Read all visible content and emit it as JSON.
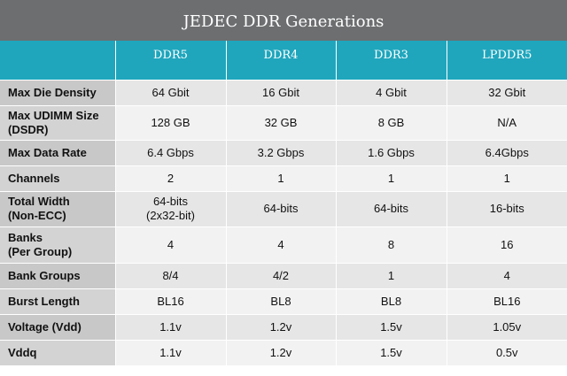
{
  "title": "JEDEC DDR Generations",
  "columns": [
    "DDR5",
    "DDR4",
    "DDR3",
    "LPDDR5"
  ],
  "rows": [
    {
      "label": [
        "Max Die Density"
      ],
      "cells": [
        [
          "64 Gbit"
        ],
        [
          "16 Gbit"
        ],
        [
          "4 Gbit"
        ],
        [
          "32 Gbit"
        ]
      ]
    },
    {
      "label": [
        "Max UDIMM Size",
        "(DSDR)"
      ],
      "cells": [
        [
          "128 GB"
        ],
        [
          "32 GB"
        ],
        [
          "8 GB"
        ],
        [
          "N/A"
        ]
      ]
    },
    {
      "label": [
        "Max Data Rate"
      ],
      "cells": [
        [
          "6.4 Gbps"
        ],
        [
          "3.2 Gbps"
        ],
        [
          "1.6 Gbps"
        ],
        [
          "6.4Gbps"
        ]
      ]
    },
    {
      "label": [
        "Channels"
      ],
      "cells": [
        [
          "2"
        ],
        [
          "1"
        ],
        [
          "1"
        ],
        [
          "1"
        ]
      ]
    },
    {
      "label": [
        "Total Width",
        "(Non-ECC)"
      ],
      "cells": [
        [
          "64-bits",
          "(2x32-bit)"
        ],
        [
          "64-bits"
        ],
        [
          "64-bits"
        ],
        [
          "16-bits"
        ]
      ]
    },
    {
      "label": [
        "Banks",
        "(Per Group)"
      ],
      "cells": [
        [
          "4"
        ],
        [
          "4"
        ],
        [
          "8"
        ],
        [
          "16"
        ]
      ]
    },
    {
      "label": [
        "Bank Groups"
      ],
      "cells": [
        [
          "8/4"
        ],
        [
          "4/2"
        ],
        [
          "1"
        ],
        [
          "4"
        ]
      ]
    },
    {
      "label": [
        "Burst Length"
      ],
      "cells": [
        [
          "BL16"
        ],
        [
          "BL8"
        ],
        [
          "BL8"
        ],
        [
          "BL16"
        ]
      ]
    },
    {
      "label": [
        "Voltage (Vdd)"
      ],
      "cells": [
        [
          "1.1v"
        ],
        [
          "1.2v"
        ],
        [
          "1.5v"
        ],
        [
          "1.05v"
        ]
      ]
    },
    {
      "label": [
        "Vddq"
      ],
      "cells": [
        [
          "1.1v"
        ],
        [
          "1.2v"
        ],
        [
          "1.5v"
        ],
        [
          "0.5v"
        ]
      ]
    }
  ]
}
